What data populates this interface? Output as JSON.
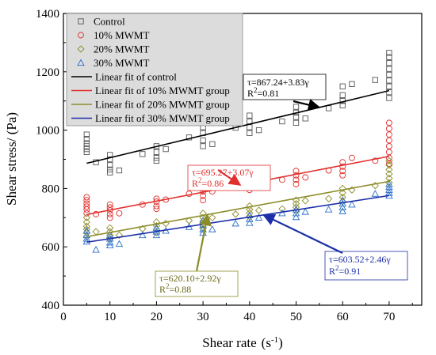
{
  "chart_data": {
    "type": "scatter",
    "xlabel": "Shear rate",
    "xlabel_unit": "(s",
    "xlabel_unit_sup": "-1",
    "xlabel_unit_close": ")",
    "ylabel": "Shear stress/ (Pa)",
    "xlim": [
      0,
      77
    ],
    "ylim": [
      400,
      1400
    ],
    "x_ticks": [
      0,
      10,
      20,
      30,
      40,
      50,
      60,
      70
    ],
    "y_ticks": [
      400,
      600,
      800,
      1000,
      1200,
      1400
    ],
    "legend_position": "top-left",
    "series": [
      {
        "name": "Control",
        "marker": "square",
        "color": "#555555",
        "points": [
          [
            5,
            985
          ],
          [
            5,
            970
          ],
          [
            5,
            955
          ],
          [
            5,
            945
          ],
          [
            5,
            935
          ],
          [
            5,
            925
          ],
          [
            7,
            890
          ],
          [
            10,
            915
          ],
          [
            10,
            900
          ],
          [
            10,
            880
          ],
          [
            10,
            865
          ],
          [
            10,
            855
          ],
          [
            12,
            862
          ],
          [
            17,
            918
          ],
          [
            20,
            945
          ],
          [
            20,
            925
          ],
          [
            20,
            905
          ],
          [
            20,
            895
          ],
          [
            22,
            935
          ],
          [
            27,
            975
          ],
          [
            30,
            1030
          ],
          [
            30,
            1010
          ],
          [
            30,
            990
          ],
          [
            30,
            965
          ],
          [
            30,
            945
          ],
          [
            32,
            952
          ],
          [
            37,
            1008
          ],
          [
            40,
            1050
          ],
          [
            40,
            1030
          ],
          [
            40,
            1010
          ],
          [
            40,
            990
          ],
          [
            42,
            1000
          ],
          [
            47,
            1030
          ],
          [
            50,
            1080
          ],
          [
            50,
            1060
          ],
          [
            50,
            1045
          ],
          [
            50,
            1025
          ],
          [
            52,
            1040
          ],
          [
            57,
            1075
          ],
          [
            60,
            1150
          ],
          [
            60,
            1120
          ],
          [
            60,
            1100
          ],
          [
            60,
            1085
          ],
          [
            62,
            1158
          ],
          [
            67,
            1172
          ],
          [
            70,
            1265
          ],
          [
            70,
            1250
          ],
          [
            70,
            1230
          ],
          [
            70,
            1210
          ],
          [
            70,
            1190
          ],
          [
            70,
            1170
          ],
          [
            70,
            1150
          ],
          [
            70,
            1130
          ],
          [
            70,
            1110
          ]
        ]
      },
      {
        "name": "10% MWMT",
        "marker": "circle",
        "color": "#e0302e",
        "points": [
          [
            5,
            770
          ],
          [
            5,
            760
          ],
          [
            5,
            748
          ],
          [
            5,
            738
          ],
          [
            5,
            728
          ],
          [
            5,
            715
          ],
          [
            7,
            712
          ],
          [
            10,
            745
          ],
          [
            10,
            735
          ],
          [
            10,
            725
          ],
          [
            10,
            712
          ],
          [
            10,
            700
          ],
          [
            12,
            715
          ],
          [
            17,
            745
          ],
          [
            20,
            765
          ],
          [
            20,
            755
          ],
          [
            20,
            740
          ],
          [
            20,
            730
          ],
          [
            22,
            762
          ],
          [
            27,
            782
          ],
          [
            30,
            810
          ],
          [
            30,
            800
          ],
          [
            30,
            790
          ],
          [
            30,
            775
          ],
          [
            30,
            760
          ],
          [
            32,
            790
          ],
          [
            37,
            805
          ],
          [
            40,
            840
          ],
          [
            40,
            825
          ],
          [
            40,
            810
          ],
          [
            40,
            795
          ],
          [
            42,
            818
          ],
          [
            47,
            830
          ],
          [
            50,
            860
          ],
          [
            50,
            845
          ],
          [
            50,
            830
          ],
          [
            50,
            815
          ],
          [
            52,
            838
          ],
          [
            57,
            862
          ],
          [
            60,
            890
          ],
          [
            60,
            875
          ],
          [
            60,
            860
          ],
          [
            60,
            845
          ],
          [
            62,
            905
          ],
          [
            67,
            895
          ],
          [
            70,
            1025
          ],
          [
            70,
            1005
          ],
          [
            70,
            985
          ],
          [
            70,
            965
          ],
          [
            70,
            945
          ],
          [
            70,
            925
          ],
          [
            70,
            905
          ],
          [
            70,
            885
          ]
        ]
      },
      {
        "name": "20% MWMT",
        "marker": "diamond",
        "color": "#8c8c2a",
        "points": [
          [
            5,
            700
          ],
          [
            5,
            685
          ],
          [
            5,
            670
          ],
          [
            5,
            660
          ],
          [
            5,
            648
          ],
          [
            5,
            635
          ],
          [
            7,
            652
          ],
          [
            10,
            665
          ],
          [
            10,
            652
          ],
          [
            10,
            640
          ],
          [
            10,
            628
          ],
          [
            12,
            640
          ],
          [
            17,
            662
          ],
          [
            20,
            685
          ],
          [
            20,
            672
          ],
          [
            20,
            660
          ],
          [
            20,
            648
          ],
          [
            22,
            680
          ],
          [
            27,
            690
          ],
          [
            30,
            715
          ],
          [
            30,
            700
          ],
          [
            30,
            688
          ],
          [
            30,
            675
          ],
          [
            30,
            662
          ],
          [
            32,
            700
          ],
          [
            37,
            712
          ],
          [
            40,
            740
          ],
          [
            40,
            728
          ],
          [
            40,
            716
          ],
          [
            40,
            704
          ],
          [
            42,
            725
          ],
          [
            47,
            730
          ],
          [
            50,
            760
          ],
          [
            50,
            748
          ],
          [
            50,
            736
          ],
          [
            50,
            724
          ],
          [
            52,
            758
          ],
          [
            57,
            765
          ],
          [
            60,
            800
          ],
          [
            60,
            785
          ],
          [
            60,
            770
          ],
          [
            60,
            755
          ],
          [
            62,
            795
          ],
          [
            67,
            810
          ],
          [
            70,
            895
          ],
          [
            70,
            880
          ],
          [
            70,
            865
          ],
          [
            70,
            850
          ],
          [
            70,
            835
          ],
          [
            70,
            820
          ]
        ]
      },
      {
        "name": "30% MWMT",
        "marker": "triangle",
        "color": "#2a6fc9",
        "points": [
          [
            5,
            655
          ],
          [
            5,
            640
          ],
          [
            5,
            628
          ],
          [
            5,
            618
          ],
          [
            7,
            590
          ],
          [
            10,
            640
          ],
          [
            10,
            628
          ],
          [
            10,
            615
          ],
          [
            10,
            605
          ],
          [
            12,
            610
          ],
          [
            17,
            640
          ],
          [
            20,
            665
          ],
          [
            20,
            652
          ],
          [
            20,
            640
          ],
          [
            22,
            655
          ],
          [
            27,
            668
          ],
          [
            30,
            690
          ],
          [
            30,
            675
          ],
          [
            30,
            660
          ],
          [
            30,
            648
          ],
          [
            32,
            660
          ],
          [
            37,
            680
          ],
          [
            40,
            708
          ],
          [
            40,
            695
          ],
          [
            40,
            682
          ],
          [
            42,
            700
          ],
          [
            47,
            715
          ],
          [
            50,
            728
          ],
          [
            50,
            715
          ],
          [
            50,
            702
          ],
          [
            52,
            720
          ],
          [
            57,
            728
          ],
          [
            60,
            760
          ],
          [
            60,
            748
          ],
          [
            60,
            735
          ],
          [
            60,
            722
          ],
          [
            62,
            745
          ],
          [
            67,
            782
          ],
          [
            70,
            815
          ],
          [
            70,
            805
          ],
          [
            70,
            795
          ],
          [
            70,
            785
          ],
          [
            70,
            775
          ]
        ]
      }
    ],
    "fits": [
      {
        "name": "Linear fit of control",
        "intercept": 867.24,
        "slope": 3.83,
        "x_range": [
          5,
          70
        ],
        "color": "#000000",
        "equation": "τ=867.24+3.83γ",
        "r2": "=0.81",
        "arrow_to_x": 55
      },
      {
        "name": "Linear fit of 10% MWMT group",
        "intercept": 695.27,
        "slope": 3.07,
        "x_range": [
          5,
          70
        ],
        "color": "#e0302e",
        "equation": "τ=695.27+3.07γ",
        "r2": "=0.86",
        "arrow_to_x": 38
      },
      {
        "name": "Linear fit of 20% MWMT group",
        "intercept": 620.1,
        "slope": 2.92,
        "x_range": [
          5,
          70
        ],
        "color": "#8c8c2a",
        "equation": "τ=620.10+2.92γ",
        "r2": "=0.88",
        "arrow_to_x": 31
      },
      {
        "name": "Linear fit of 30% MWMT group",
        "intercept": 603.52,
        "slope": 2.46,
        "x_range": [
          5,
          70
        ],
        "color": "#1c2fa8",
        "equation": "τ=603.52+2.46γ",
        "r2": "=0.91",
        "arrow_to_x": 43
      }
    ],
    "r2_prefix": "R",
    "r2_sup": "2"
  }
}
